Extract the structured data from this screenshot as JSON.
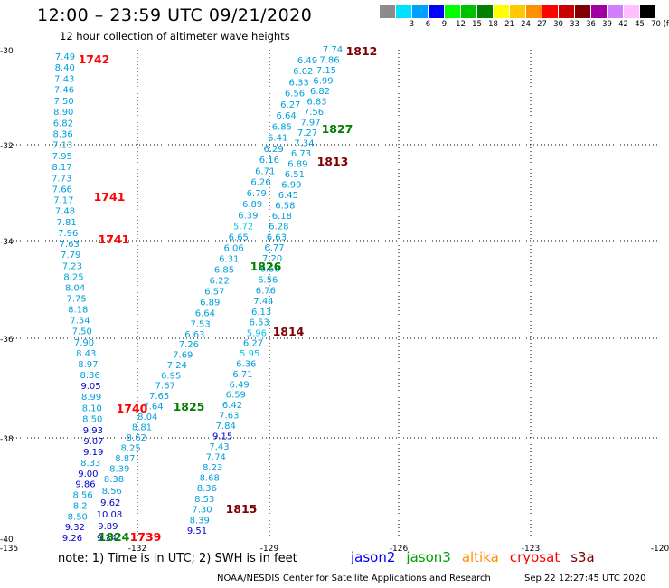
{
  "header": {
    "title": "12:00 – 23:59 UTC 09/21/2020",
    "subtitle": "12 hour collection of altimeter wave heights"
  },
  "color_scale": {
    "unit": "(ft)",
    "bins": [
      {
        "label": "",
        "color": "#8c8c8c"
      },
      {
        "label": "3",
        "color": "#00e0ff"
      },
      {
        "label": "6",
        "color": "#00a0ff"
      },
      {
        "label": "9",
        "color": "#0000ff"
      },
      {
        "label": "12",
        "color": "#00ff00"
      },
      {
        "label": "15",
        "color": "#00c000"
      },
      {
        "label": "18",
        "color": "#008000"
      },
      {
        "label": "21",
        "color": "#ffff00"
      },
      {
        "label": "24",
        "color": "#ffc800"
      },
      {
        "label": "27",
        "color": "#ff9000"
      },
      {
        "label": "30",
        "color": "#ff0000"
      },
      {
        "label": "33",
        "color": "#c80000"
      },
      {
        "label": "36",
        "color": "#800000"
      },
      {
        "label": "39",
        "color": "#a000a0"
      },
      {
        "label": "42",
        "color": "#d080ff"
      },
      {
        "label": "45",
        "color": "#ffc0ff"
      },
      {
        "label": "70",
        "color": "#000000"
      }
    ]
  },
  "map": {
    "lon_ticks": [
      "-135",
      "-132",
      "-129",
      "-126",
      "-123",
      "-120"
    ],
    "lat_ticks": [
      "-30",
      "-32",
      "-34",
      "-36",
      "-38",
      "-40"
    ],
    "pass_times": [
      {
        "text": "1742",
        "sat": "cryosat",
        "color": "#ff0000"
      },
      {
        "text": "1741",
        "sat": "cryosat",
        "color": "#ff0000"
      },
      {
        "text": "1741",
        "sat": "cryosat",
        "color": "#ff0000"
      },
      {
        "text": "1740",
        "sat": "cryosat",
        "color": "#ff0000"
      },
      {
        "text": "1739",
        "sat": "cryosat",
        "color": "#ff0000"
      },
      {
        "text": "1812",
        "sat": "s3a",
        "color": "#800000"
      },
      {
        "text": "1827",
        "sat": "jason3",
        "color": "#008000"
      },
      {
        "text": "1813",
        "sat": "s3a",
        "color": "#800000"
      },
      {
        "text": "1826",
        "sat": "jason3",
        "color": "#008000"
      },
      {
        "text": "1814",
        "sat": "s3a",
        "color": "#800000"
      },
      {
        "text": "1825",
        "sat": "jason3",
        "color": "#008000"
      },
      {
        "text": "1815",
        "sat": "s3a",
        "color": "#800000"
      },
      {
        "text": "1824",
        "sat": "jason3",
        "color": "#008000"
      }
    ],
    "tracks": [
      {
        "name": "cryosat-track",
        "values": [
          "7.49",
          "8.40",
          "7.43",
          "7.46",
          "7.50",
          "8.90",
          "6.82",
          "8.36",
          "7.13",
          "7.95",
          "8.17",
          "7.73",
          "7.66",
          "7.17",
          "7.48",
          "7.81",
          "7.96",
          "7.63",
          "7.79",
          "7.23",
          "8.25",
          "8.04",
          "7.75",
          "8.18",
          "7.54",
          "7.50",
          "7.90",
          "8.43",
          "8.97",
          "8.36",
          "9.05",
          "8.99",
          "8.10",
          "8.50",
          "9.93",
          "9.07",
          "9.19",
          "8.33",
          "9.00",
          "9.86",
          "8.56",
          "8.2",
          "8.50",
          "9.32",
          "9.26"
        ]
      },
      {
        "name": "jason3-track",
        "values": [
          "6.49",
          "6.02",
          "6.33",
          "6.56",
          "6.27",
          "6.64",
          "6.85",
          "6.41",
          "6.29",
          "6.16",
          "6.71",
          "6.26",
          "6.79",
          "6.89",
          "6.39",
          "5.72",
          "6.65",
          "6.06",
          "6.31",
          "6.85",
          "6.22",
          "6.57",
          "6.89",
          "6.64",
          "7.53",
          "6.63",
          "7.26",
          "7.69",
          "7.24",
          "6.95",
          "7.67",
          "7.65",
          "7.64",
          "8.04",
          "8.81",
          "8.62",
          "8.25",
          "8.87",
          "8.39",
          "8.38",
          "8.56",
          "9.62",
          "10.08",
          "9.89",
          "9.34"
        ]
      },
      {
        "name": "s3a-track",
        "values": [
          "7.74",
          "7.86",
          "7.15",
          "6.99",
          "6.82",
          "6.83",
          "7.56",
          "7.97",
          "7.27",
          "7.34",
          "6.73",
          "6.89",
          "6.51",
          "6.99",
          "6.45",
          "6.58",
          "6.18",
          "6.28",
          "6.63",
          "6.77",
          "7.20",
          "6.58",
          "6.56",
          "6.76",
          "7.44",
          "6.13",
          "6.53",
          "5.96",
          "6.27",
          "5.95",
          "6.36",
          "6.71",
          "6.49",
          "6.59",
          "6.42",
          "7.63",
          "7.84",
          "9.15",
          "7.43",
          "7.74",
          "8.23",
          "8.68",
          "8.36",
          "8.53",
          "7.30",
          "8.39",
          "9.51"
        ]
      }
    ]
  },
  "footer": {
    "note": "note:  1) Time is in UTC;  2) SWH is in feet",
    "legend": [
      {
        "name": "jason2",
        "color": "#0000ff"
      },
      {
        "name": "jason3",
        "color": "#00a000"
      },
      {
        "name": "altika",
        "color": "#ff9000"
      },
      {
        "name": "cryosat",
        "color": "#ff0000"
      },
      {
        "name": "s3a",
        "color": "#800000"
      }
    ],
    "credit": "NOAA/NESDIS Center for Satellite Applications and Research",
    "timestamp": "Sep 22 12:27:45 UTC 2020"
  }
}
